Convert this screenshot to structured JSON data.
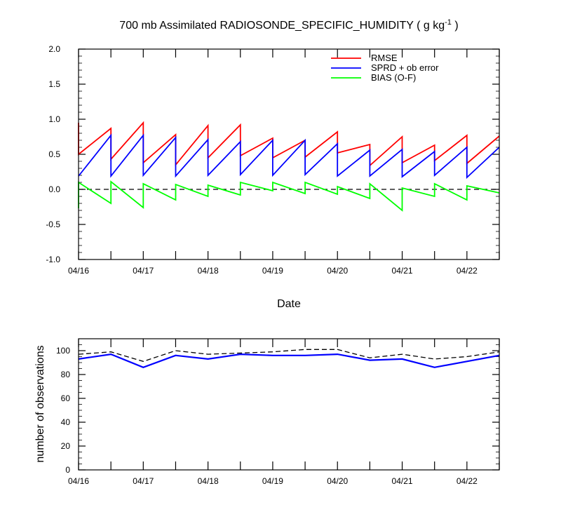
{
  "chart_data": [
    {
      "type": "line",
      "title": "700 mb Assimilated RADIOSONDE_SPECIFIC_HUMIDITY ( g kg",
      "title_units_sup": "-1",
      "title_close": " )",
      "xlabel": "Date",
      "ylabel": "",
      "ylim": [
        -1.0,
        2.0
      ],
      "y_ticks": [
        "-1.0",
        "-0.5",
        "0.0",
        "0.5",
        "1.0",
        "1.5",
        "2.0"
      ],
      "x_ticks": [
        "04/16",
        "04/17",
        "04/18",
        "04/19",
        "04/20",
        "04/21",
        "04/22"
      ],
      "grid": false,
      "legend_position": "top-right",
      "reference_line": {
        "y": 0.0,
        "style": "dashed"
      },
      "series": [
        {
          "name": "RMSE",
          "color": "#ff0000",
          "x": [
            16.0,
            16.0,
            16.5,
            16.5,
            17.0,
            17.0,
            17.5,
            17.5,
            18.0,
            18.0,
            18.5,
            18.5,
            19.0,
            19.0,
            19.5,
            19.5,
            20.0,
            20.0,
            20.5,
            20.5,
            21.0,
            21.0,
            21.5,
            21.5,
            22.0,
            22.0,
            22.5
          ],
          "y": [
            0.95,
            0.5,
            0.87,
            0.43,
            0.95,
            0.38,
            0.78,
            0.35,
            0.91,
            0.45,
            0.92,
            0.48,
            0.73,
            0.45,
            0.7,
            0.46,
            0.82,
            0.52,
            0.64,
            0.34,
            0.75,
            0.38,
            0.63,
            0.41,
            0.77,
            0.37,
            0.76
          ]
        },
        {
          "name": "SPRD + ob error",
          "color": "#0000ff",
          "x": [
            16.0,
            16.5,
            16.5,
            17.0,
            17.0,
            17.5,
            17.5,
            18.0,
            18.0,
            18.5,
            18.5,
            19.0,
            19.0,
            19.5,
            19.5,
            20.0,
            20.0,
            20.5,
            20.5,
            21.0,
            21.0,
            21.5,
            21.5,
            22.0,
            22.0,
            22.5
          ],
          "y": [
            0.19,
            0.77,
            0.19,
            0.77,
            0.2,
            0.74,
            0.19,
            0.71,
            0.2,
            0.68,
            0.21,
            0.7,
            0.2,
            0.7,
            0.21,
            0.65,
            0.19,
            0.56,
            0.19,
            0.57,
            0.18,
            0.54,
            0.2,
            0.6,
            0.17,
            0.6
          ]
        },
        {
          "name": "BIAS (O-F)",
          "color": "#00ff00",
          "x": [
            16.0,
            16.0,
            16.5,
            16.5,
            17.0,
            17.0,
            17.5,
            17.5,
            18.0,
            18.0,
            18.5,
            18.5,
            19.0,
            19.0,
            19.5,
            19.5,
            20.0,
            20.0,
            20.5,
            20.5,
            21.0,
            21.0,
            21.5,
            21.5,
            22.0,
            22.0,
            22.5
          ],
          "y": [
            -0.27,
            0.1,
            -0.2,
            0.11,
            -0.26,
            0.08,
            -0.15,
            0.07,
            -0.1,
            0.06,
            -0.08,
            0.1,
            -0.02,
            0.1,
            -0.06,
            0.1,
            -0.07,
            0.04,
            -0.13,
            0.08,
            -0.3,
            0.02,
            -0.1,
            0.08,
            -0.15,
            0.05,
            -0.05
          ]
        }
      ]
    },
    {
      "type": "line",
      "title": "",
      "xlabel": "",
      "ylabel": "number of observations",
      "ylim": [
        0,
        110
      ],
      "y_ticks": [
        "0",
        "20",
        "40",
        "60",
        "80",
        "100"
      ],
      "x_ticks": [
        "04/16",
        "04/17",
        "04/18",
        "04/19",
        "04/20",
        "04/21",
        "04/22"
      ],
      "grid": false,
      "series": [
        {
          "style": "dashed",
          "color": "#000000",
          "x": [
            16.0,
            16.5,
            17.0,
            17.5,
            18.0,
            18.5,
            19.0,
            19.5,
            20.0,
            20.5,
            21.0,
            21.5,
            22.0,
            22.5
          ],
          "y": [
            97,
            99,
            91,
            100,
            97,
            98,
            99,
            101,
            101,
            94,
            97,
            93,
            95,
            99
          ]
        },
        {
          "color": "#0000ff",
          "x": [
            16.0,
            16.5,
            17.0,
            17.5,
            18.0,
            18.5,
            19.0,
            19.5,
            20.0,
            20.5,
            21.0,
            21.5,
            22.0,
            22.5
          ],
          "y": [
            93,
            97,
            86,
            96,
            93,
            97,
            96,
            96,
            97,
            92,
            93,
            86,
            91,
            96
          ]
        }
      ]
    }
  ]
}
